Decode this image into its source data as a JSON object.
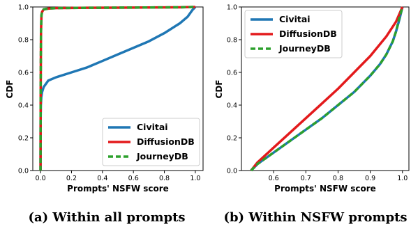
{
  "chart_data": [
    {
      "type": "line",
      "caption": "(a) Within all prompts",
      "xlabel": "Prompts' NSFW score",
      "ylabel": "CDF",
      "xlim": [
        -0.05,
        1.05
      ],
      "ylim": [
        0,
        1
      ],
      "xticks": [
        "0.0",
        "0.2",
        "0.4",
        "0.6",
        "0.8",
        "1.0"
      ],
      "xtick_values": [
        0,
        0.2,
        0.4,
        0.6,
        0.8,
        1.0
      ],
      "yticks": [
        "0.0",
        "0.2",
        "0.4",
        "0.6",
        "0.8",
        "1.0"
      ],
      "ytick_values": [
        0,
        0.2,
        0.4,
        0.6,
        0.8,
        1.0
      ],
      "legend_position": "bottom-right",
      "grid": false,
      "series": [
        {
          "name": "Civitai",
          "color": "#1f77b4",
          "style": "solid",
          "x": [
            0,
            0.0005,
            0.002,
            0.005,
            0.01,
            0.02,
            0.05,
            0.1,
            0.2,
            0.3,
            0.4,
            0.5,
            0.6,
            0.7,
            0.8,
            0.9,
            0.95,
            0.98,
            1.0
          ],
          "y": [
            0,
            0.3,
            0.4,
            0.45,
            0.48,
            0.51,
            0.55,
            0.57,
            0.6,
            0.63,
            0.67,
            0.71,
            0.75,
            0.79,
            0.84,
            0.9,
            0.94,
            0.98,
            1.0
          ]
        },
        {
          "name": "DiffusionDB",
          "color": "#e31a1c",
          "style": "solid",
          "x": [
            0,
            0.001,
            0.003,
            0.006,
            0.01,
            0.02,
            0.05,
            0.1,
            0.3,
            0.5,
            0.7,
            0.9,
            1.0
          ],
          "y": [
            0,
            0.5,
            0.85,
            0.95,
            0.97,
            0.985,
            0.99,
            0.993,
            0.995,
            0.996,
            0.997,
            0.998,
            1.0
          ]
        },
        {
          "name": "JourneyDB",
          "color": "#2ca02c",
          "style": "dashed",
          "x": [
            0,
            0.001,
            0.003,
            0.006,
            0.01,
            0.02,
            0.05,
            0.1,
            0.3,
            0.5,
            0.7,
            0.9,
            1.0
          ],
          "y": [
            0,
            0.5,
            0.85,
            0.95,
            0.97,
            0.985,
            0.99,
            0.993,
            0.995,
            0.996,
            0.997,
            0.998,
            1.0
          ]
        }
      ]
    },
    {
      "type": "line",
      "caption": "(b) Within NSFW prompts",
      "xlabel": "Prompts' NSFW score",
      "ylabel": "CDF",
      "xlim": [
        0.5,
        1.02
      ],
      "ylim": [
        0,
        1
      ],
      "xticks": [
        "0.6",
        "0.7",
        "0.8",
        "0.9",
        "1.0"
      ],
      "xtick_values": [
        0.6,
        0.7,
        0.8,
        0.9,
        1.0
      ],
      "yticks": [
        "0.0",
        "0.2",
        "0.4",
        "0.6",
        "0.8",
        "1.0"
      ],
      "ytick_values": [
        0,
        0.2,
        0.4,
        0.6,
        0.8,
        1.0
      ],
      "legend_position": "top-left",
      "grid": false,
      "series": [
        {
          "name": "Civitai",
          "color": "#1f77b4",
          "style": "solid",
          "x": [
            0.53,
            0.55,
            0.6,
            0.65,
            0.7,
            0.75,
            0.8,
            0.85,
            0.9,
            0.93,
            0.95,
            0.97,
            0.98,
            0.99,
            1.0
          ],
          "y": [
            0,
            0.04,
            0.11,
            0.18,
            0.25,
            0.32,
            0.4,
            0.48,
            0.58,
            0.65,
            0.71,
            0.79,
            0.85,
            0.92,
            1.0
          ]
        },
        {
          "name": "DiffusionDB",
          "color": "#e31a1c",
          "style": "solid",
          "x": [
            0.53,
            0.55,
            0.6,
            0.65,
            0.7,
            0.75,
            0.8,
            0.85,
            0.9,
            0.95,
            0.98,
            1.0
          ],
          "y": [
            0,
            0.05,
            0.14,
            0.23,
            0.32,
            0.41,
            0.5,
            0.6,
            0.7,
            0.82,
            0.91,
            1.0
          ]
        },
        {
          "name": "JourneyDB",
          "color": "#2ca02c",
          "style": "dashed",
          "x": [
            0.53,
            0.55,
            0.6,
            0.65,
            0.7,
            0.75,
            0.8,
            0.85,
            0.9,
            0.93,
            0.95,
            0.97,
            0.98,
            0.99,
            1.0
          ],
          "y": [
            0,
            0.04,
            0.11,
            0.18,
            0.25,
            0.32,
            0.4,
            0.48,
            0.58,
            0.65,
            0.71,
            0.79,
            0.85,
            0.93,
            1.0
          ]
        }
      ]
    }
  ]
}
